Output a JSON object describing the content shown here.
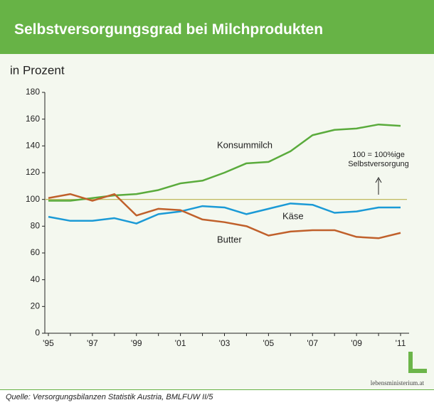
{
  "chart_data": {
    "type": "line",
    "title": "Selbstversorgungsgrad bei Milchprodukten",
    "y_label": "in Prozent",
    "categories": [
      "'95",
      null,
      "'97",
      null,
      "'99",
      null,
      "'01",
      null,
      "'03",
      null,
      "'05",
      null,
      "'07",
      null,
      "'09",
      null,
      "'11"
    ],
    "series": [
      {
        "name": "Konsummilch",
        "color": "#5aab3c",
        "values": [
          99,
          99,
          101,
          103,
          104,
          107,
          112,
          114,
          120,
          127,
          128,
          136,
          148,
          152,
          153,
          156,
          155
        ]
      },
      {
        "name": "Käse",
        "color": "#1b9ad6",
        "values": [
          87,
          84,
          84,
          86,
          82,
          89,
          91,
          95,
          94,
          89,
          93,
          97,
          96,
          90,
          91,
          94,
          94
        ]
      },
      {
        "name": "Butter",
        "color": "#c0602b",
        "values": [
          101,
          104,
          99,
          104,
          88,
          93,
          92,
          85,
          83,
          80,
          73,
          76,
          77,
          77,
          72,
          71,
          75
        ]
      }
    ],
    "reference_line": 100,
    "reference_color": "#b9b24c",
    "annotation": [
      "100 = 100%ige",
      "Selbstversorgung"
    ],
    "ylim": [
      0,
      180
    ],
    "yticks": [
      0,
      20,
      40,
      60,
      80,
      100,
      120,
      140,
      160,
      180
    ],
    "source": "Quelle: Versorgungsbilanzen Statistik Austria, BMLFUW II/5",
    "logo": "lebensministerium.at"
  }
}
